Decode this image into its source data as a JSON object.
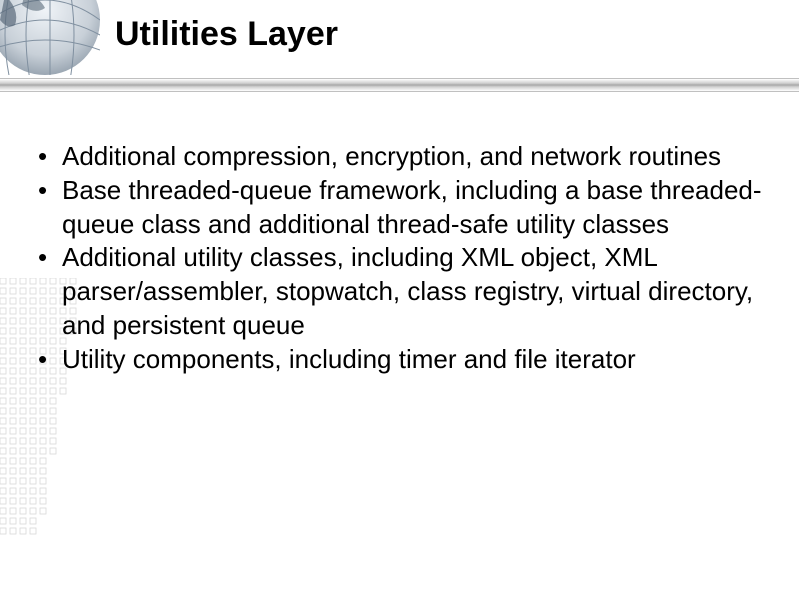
{
  "slide": {
    "title": "Utilities Layer",
    "bullets": [
      "Additional compression, encryption, and network routines",
      "Base threaded-queue framework, including a base threaded-queue class and additional thread-safe utility classes",
      "Additional utility classes, including XML object, XML parser/assembler, stopwatch, class registry, virtual directory, and persistent queue",
      "Utility components, including timer and file iterator"
    ]
  },
  "style": {
    "title_fontsize": 34,
    "title_color": "#000000",
    "bullet_fontsize": 26,
    "bullet_color": "#000000",
    "background_color": "#ffffff",
    "divider_gradient": [
      "#ffffff",
      "#d0d0d0",
      "#a8a8a8",
      "#d0d0d0",
      "#ffffff"
    ],
    "globe_colors": {
      "grid": "#8090a0",
      "land": "#5a6a7a",
      "shadow": "#3a4a5a"
    },
    "dot_color": "#d8d8d8"
  }
}
